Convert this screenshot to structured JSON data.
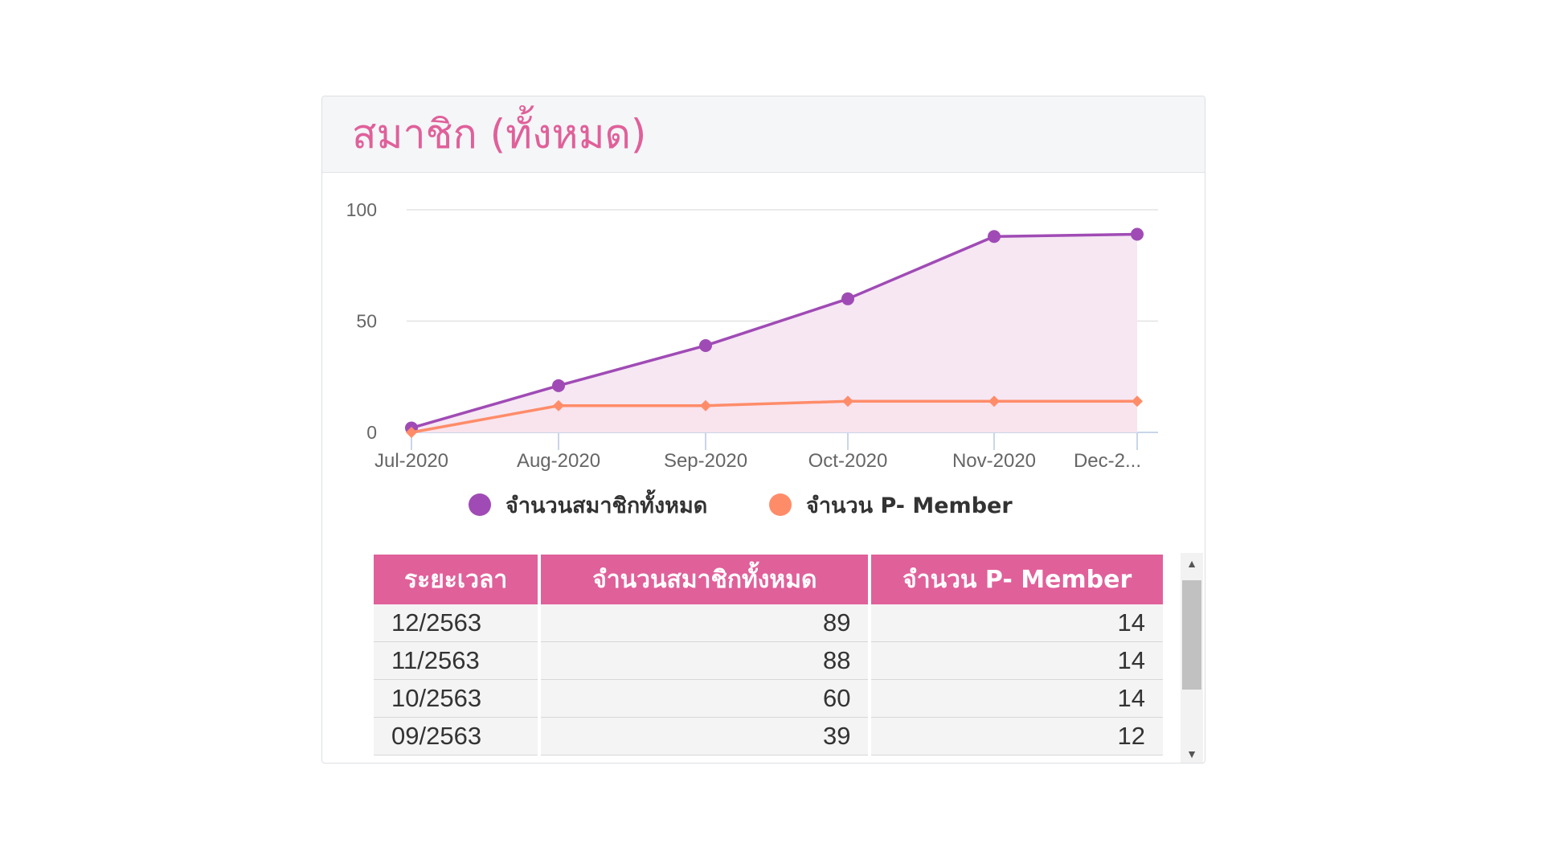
{
  "card": {
    "title": "สมาชิก (ทั้งหมด)"
  },
  "chart_data": {
    "type": "area",
    "categories": [
      "Jul-2020",
      "Aug-2020",
      "Sep-2020",
      "Oct-2020",
      "Nov-2020",
      "Dec-2..."
    ],
    "series": [
      {
        "name": "จำนวนสมาชิกทั้งหมด",
        "values": [
          2,
          21,
          39,
          60,
          88,
          89
        ],
        "color": "#a04bb5",
        "fill": "#f6e7f3",
        "marker": "circle"
      },
      {
        "name": "จำนวน P- Member",
        "values": [
          0,
          12,
          12,
          14,
          14,
          14
        ],
        "color": "#ff8c69",
        "fill": "#f9e2eb",
        "marker": "diamond"
      }
    ],
    "ylim": [
      0,
      100
    ],
    "yticks": [
      0,
      50,
      100
    ],
    "grid": true,
    "legend": "bottom"
  },
  "table": {
    "headers": [
      "ระยะเวลา",
      "จำนวนสมาชิกทั้งหมด",
      "จำนวน P- Member"
    ],
    "rows": [
      [
        "12/2563",
        "89",
        "14"
      ],
      [
        "11/2563",
        "88",
        "14"
      ],
      [
        "10/2563",
        "60",
        "14"
      ],
      [
        "09/2563",
        "39",
        "12"
      ]
    ]
  },
  "scrollbar": {
    "up_icon": "▲",
    "down_icon": "▼"
  }
}
